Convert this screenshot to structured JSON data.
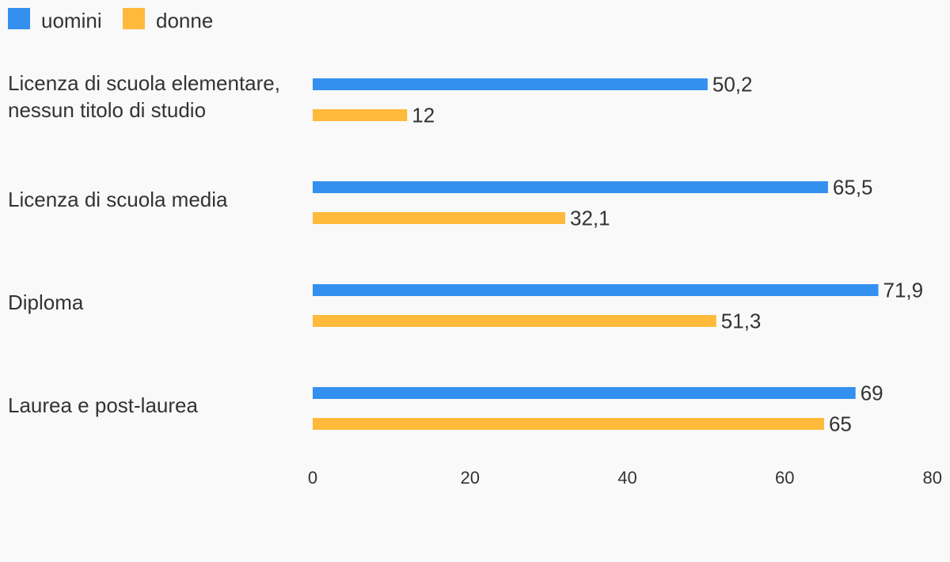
{
  "chart_data": {
    "type": "bar",
    "orientation": "horizontal",
    "categories": [
      [
        "Licenza di scuola elementare,",
        " nessun titolo di studio"
      ],
      [
        "Licenza di scuola media"
      ],
      [
        "Diploma"
      ],
      [
        "Laurea e post-laurea"
      ]
    ],
    "series": [
      {
        "name": "uomini",
        "color": "#3490ee",
        "values": [
          50.2,
          65.5,
          71.9,
          69
        ],
        "labels": [
          "50,2",
          "65,5",
          "71,9",
          "69"
        ]
      },
      {
        "name": "donne",
        "color": "#ffb93b",
        "values": [
          12,
          32.1,
          51.3,
          65
        ],
        "labels": [
          "12",
          "32,1",
          "51,3",
          "65"
        ]
      }
    ],
    "xlim": [
      0,
      80
    ],
    "xticks": [
      0,
      20,
      40,
      60,
      80
    ],
    "grid": false,
    "legend_position": "top-left"
  }
}
